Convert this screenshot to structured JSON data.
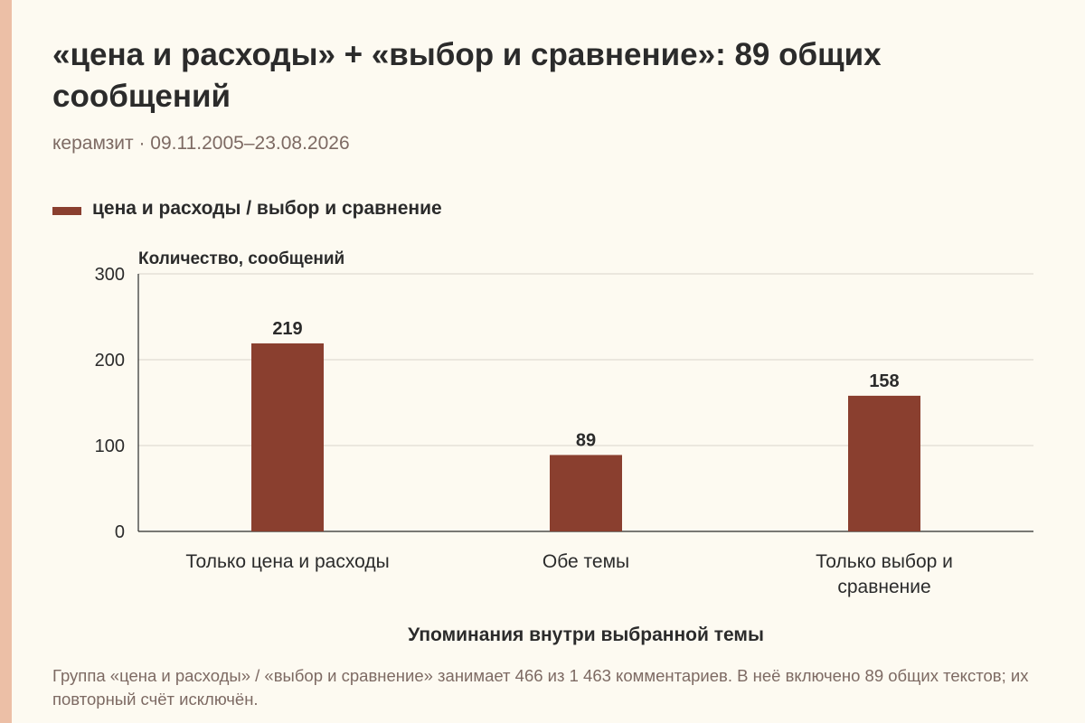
{
  "header": {
    "title": "«цена и расходы» + «выбор и сравнение»: 89 общих сообщений",
    "subtitle": "керамзит · 09.11.2005–23.08.2026"
  },
  "legend": {
    "label": "цена и расходы / выбор и сравнение",
    "color": "#8a3f2f"
  },
  "chart_data": {
    "type": "bar",
    "categories": [
      [
        "Только цена и расходы"
      ],
      [
        "Обе темы"
      ],
      [
        "Только выбор и",
        "сравнение"
      ]
    ],
    "series": [
      {
        "name": "цена и расходы / выбор и сравнение",
        "values": [
          219,
          89,
          158
        ]
      }
    ],
    "ylabel": "Количество, сообщений",
    "xlabel": "Упоминания внутри выбранной темы",
    "ylim": [
      0,
      300
    ],
    "yticks": [
      0,
      100,
      200,
      300
    ],
    "grid": true,
    "legend_position": "top-left",
    "bar_color": "#8a3f2f"
  },
  "footnote": "Группа «цена и расходы» / «выбор и сравнение» занимает 466 из 1 463 комментариев. В неё включено 89 общих текстов; их повторный счёт исключён."
}
